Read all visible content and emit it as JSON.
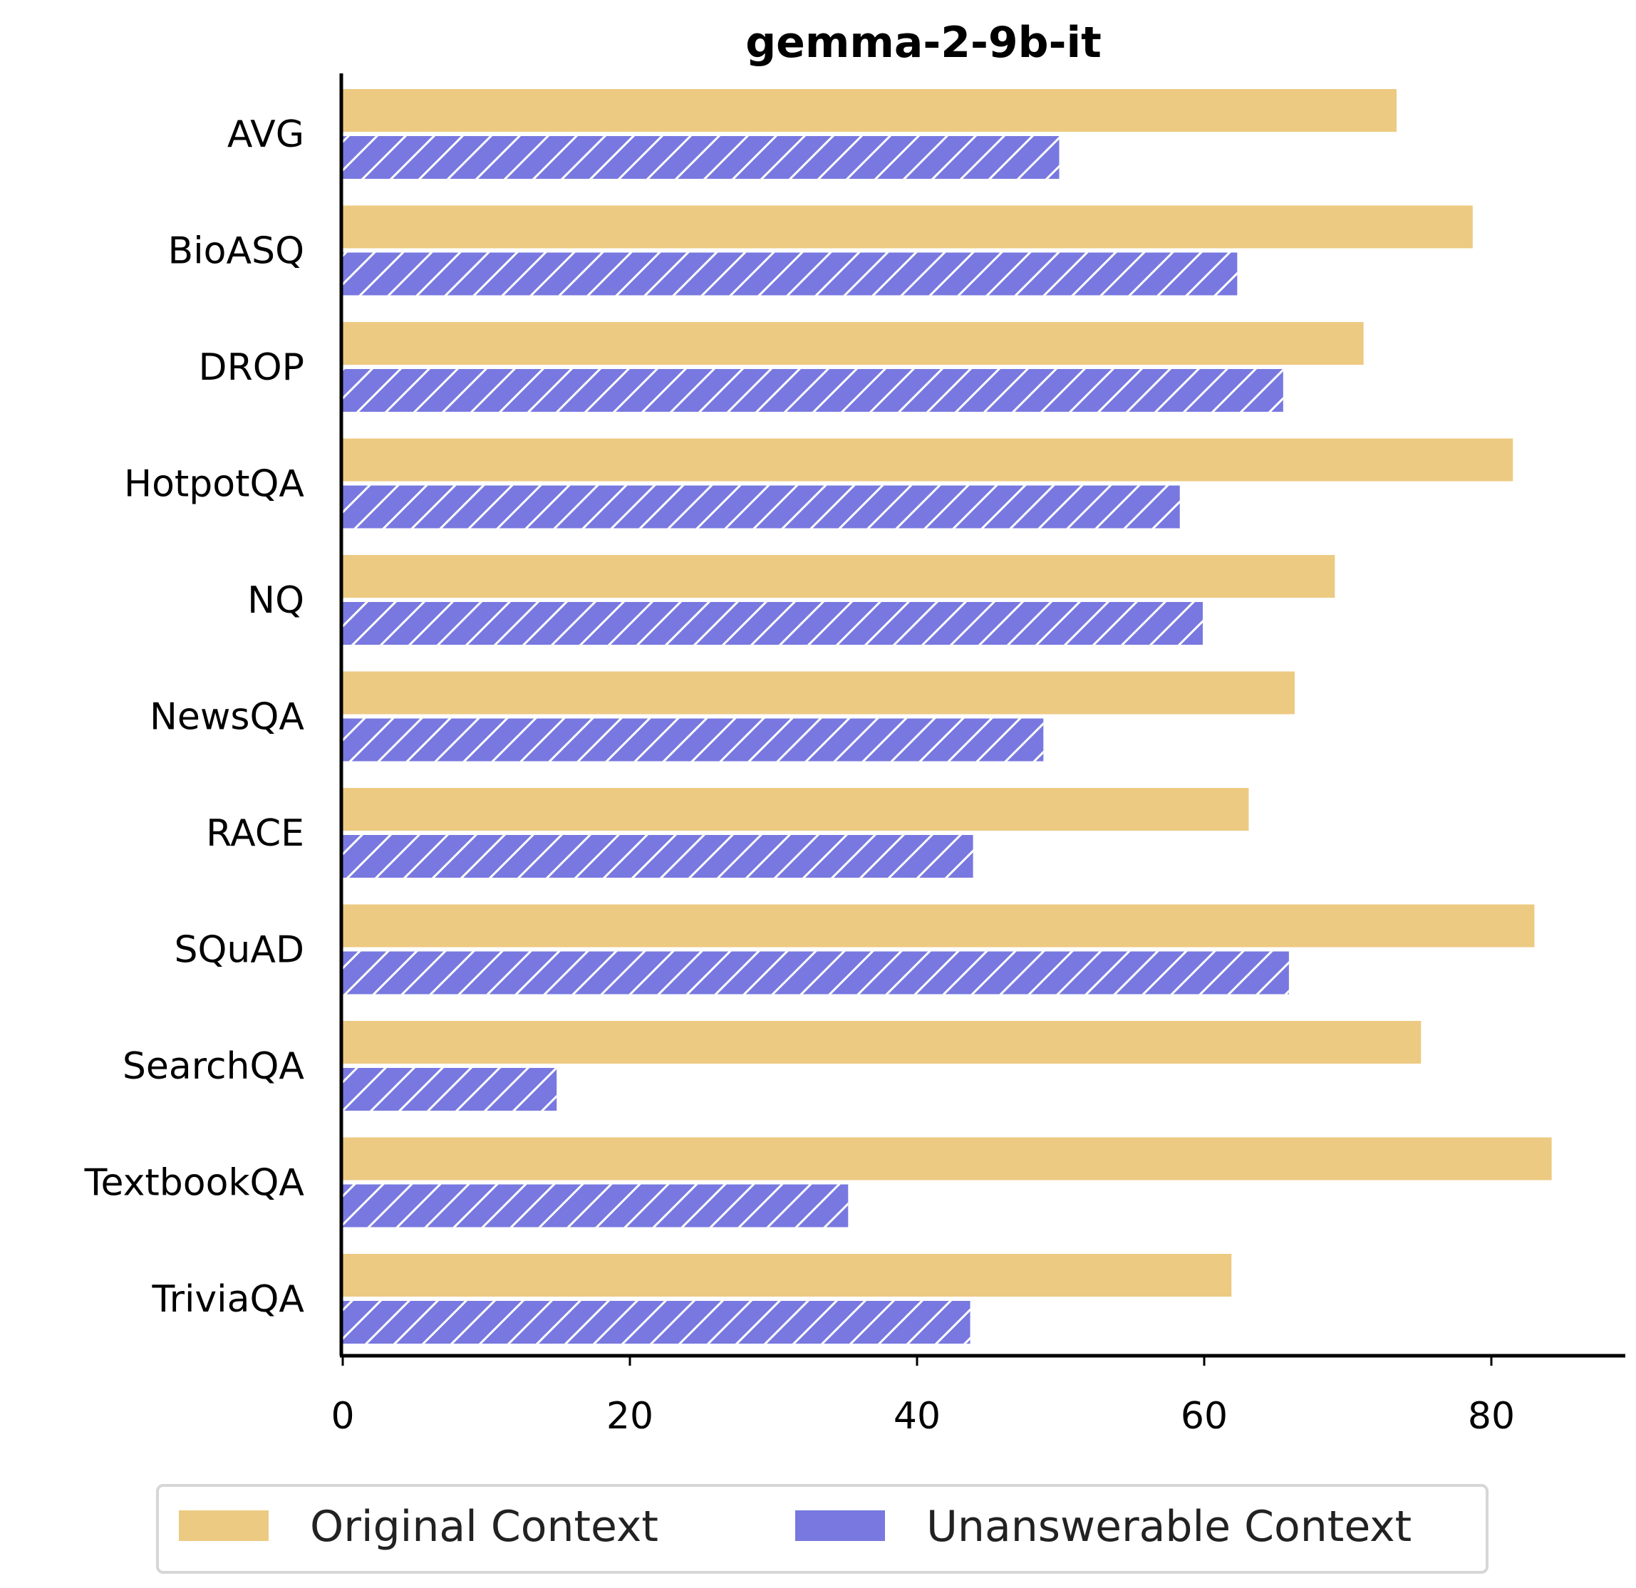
{
  "chart_data": {
    "type": "bar",
    "orientation": "horizontal",
    "title": "gemma-2-9b-it",
    "xlabel": "",
    "ylabel": "",
    "xlim": [
      0,
      89
    ],
    "xticks": [
      0,
      20,
      40,
      60,
      80
    ],
    "grid": false,
    "legend_position": "bottom",
    "categories": [
      "AVG",
      "BioASQ",
      "DROP",
      "HotpotQA",
      "NQ",
      "NewsQA",
      "RACE",
      "SQuAD",
      "SearchQA",
      "TextbookQA",
      "TriviaQA"
    ],
    "series": [
      {
        "name": "Original Context",
        "color": "#edca82",
        "hatch": false,
        "values": [
          73.4,
          78.7,
          71.1,
          81.5,
          69.1,
          66.3,
          63.1,
          83.0,
          75.1,
          84.2,
          61.9
        ]
      },
      {
        "name": "Unanswerable Context",
        "color": "#7878e0",
        "hatch": true,
        "values": [
          49.9,
          62.3,
          65.5,
          58.3,
          59.9,
          48.8,
          43.9,
          65.9,
          14.9,
          35.2,
          43.7
        ]
      }
    ]
  }
}
